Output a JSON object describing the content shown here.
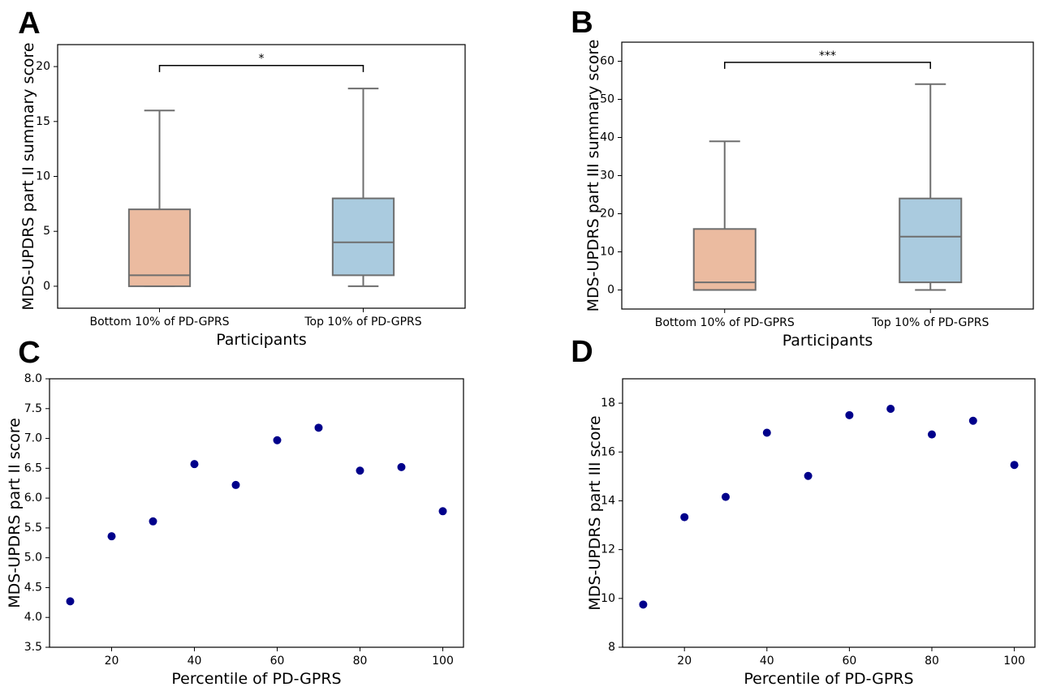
{
  "figure": {
    "panels": [
      "A",
      "B",
      "C",
      "D"
    ]
  },
  "colors": {
    "bottom_box": "#ebbba0",
    "top_box": "#aacbdf",
    "box_edge": "#6e6e6e",
    "scatter_point": "#00008b"
  },
  "chart_data": [
    {
      "panel": "A",
      "type": "box",
      "categories": [
        "Bottom 10% of PD-GPRS",
        "Top 10% of PD-GPRS"
      ],
      "xlabel": "Participants",
      "ylabel": "MDS-UPDRS part II summary score",
      "ylim": [
        -2,
        22
      ],
      "yticks": [
        0,
        5,
        10,
        15,
        20
      ],
      "boxes": [
        {
          "min": 0,
          "q1": 0,
          "median": 1,
          "q3": 7,
          "max": 16,
          "color": "#ebbba0"
        },
        {
          "min": 0,
          "q1": 1,
          "median": 4,
          "q3": 8,
          "max": 18,
          "color": "#aacbdf"
        }
      ],
      "significance": {
        "label": "*",
        "y": 19.5,
        "height": 0.6
      }
    },
    {
      "panel": "B",
      "type": "box",
      "categories": [
        "Bottom 10% of PD-GPRS",
        "Top 10% of PD-GPRS"
      ],
      "xlabel": "Participants",
      "ylabel": "MDS-UPDRS part III summary score",
      "ylim": [
        -5,
        65
      ],
      "yticks": [
        0,
        10,
        20,
        30,
        40,
        50,
        60
      ],
      "boxes": [
        {
          "min": 0,
          "q1": 0,
          "median": 2,
          "q3": 16,
          "max": 39,
          "color": "#ebbba0"
        },
        {
          "min": 0,
          "q1": 2,
          "median": 14,
          "q3": 24,
          "max": 54,
          "color": "#aacbdf"
        }
      ],
      "significance": {
        "label": "***",
        "y": 58,
        "height": 1.7
      }
    },
    {
      "panel": "C",
      "type": "scatter",
      "xlabel": "Percentile of PD-GPRS",
      "ylabel": "MDS-UPDRS part II score",
      "xlim": [
        5,
        105
      ],
      "xticks": [
        20,
        40,
        60,
        80,
        100
      ],
      "ylim": [
        3.5,
        8.0
      ],
      "yticks": [
        "3.5",
        "4.0",
        "4.5",
        "5.0",
        "5.5",
        "6.0",
        "6.5",
        "7.0",
        "7.5",
        "8.0"
      ],
      "x": [
        10,
        20,
        30,
        40,
        50,
        60,
        70,
        80,
        90,
        100
      ],
      "y": [
        4.27,
        5.36,
        5.61,
        6.57,
        6.22,
        6.97,
        7.18,
        6.46,
        6.52,
        5.78
      ]
    },
    {
      "panel": "D",
      "type": "scatter",
      "xlabel": "Percentile of PD-GPRS",
      "ylabel": "MDS-UPDRS part III score",
      "xlim": [
        5,
        105
      ],
      "xticks": [
        20,
        40,
        60,
        80,
        100
      ],
      "ylim": [
        8,
        19
      ],
      "yticks": [
        "8",
        "10",
        "12",
        "14",
        "16",
        "18"
      ],
      "x": [
        10,
        20,
        30,
        40,
        50,
        60,
        70,
        80,
        90,
        100
      ],
      "y": [
        9.75,
        13.33,
        14.16,
        16.79,
        15.02,
        17.51,
        17.77,
        16.72,
        17.28,
        15.47
      ]
    }
  ]
}
